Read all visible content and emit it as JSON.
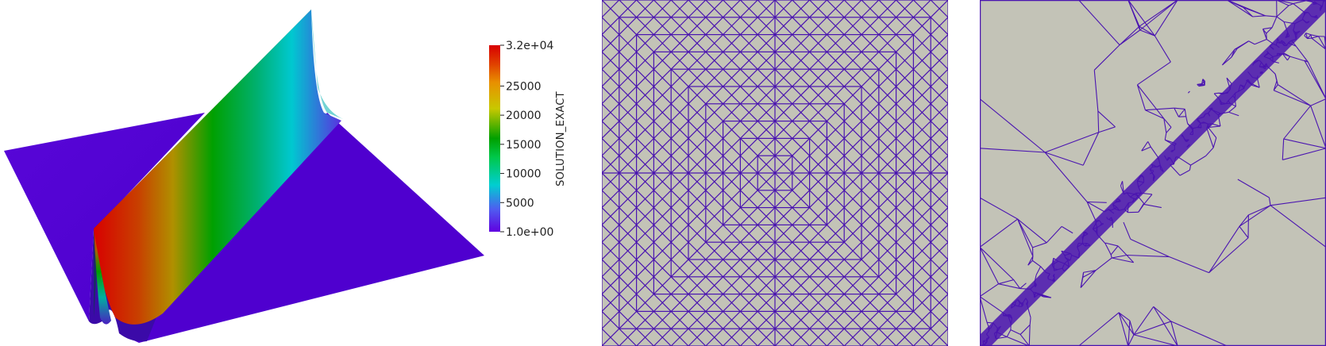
{
  "colorbar": {
    "title": "SOLUTION_EXACT",
    "max_label": "3.2e+04",
    "min_label": "1.0e+00",
    "ticks": [
      "25000",
      "20000",
      "15000",
      "10000",
      "5000"
    ],
    "tick_values": [
      25000,
      20000,
      15000,
      10000,
      5000
    ],
    "range": [
      1,
      32000
    ],
    "colormap": [
      "#6000e0",
      "#4f5cf0",
      "#00ced1",
      "#00c84a",
      "#00a000",
      "#c8c800",
      "#e89000",
      "#e04000",
      "#d80000"
    ]
  },
  "colors": {
    "base_surface": "#5200d6",
    "mesh_background": "#c3c3b7",
    "mesh_edges": "#4a14b0"
  },
  "panels": {
    "surface": "3D surface plot of exact solution with sharp ridge",
    "uniform_mesh": "uniform triangular mesh",
    "adaptive_mesh": "adaptively refined triangular mesh along diagonal"
  }
}
